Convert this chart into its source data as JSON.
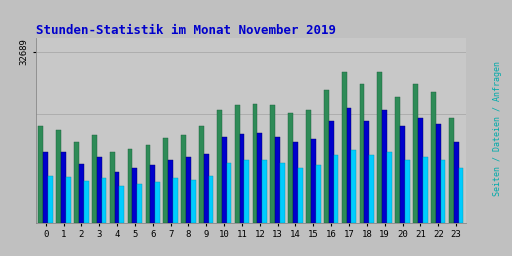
{
  "title": "Stunden-Statistik im Monat November 2019",
  "ylabel": "Seiten / Dateien / Anfragen",
  "ytick_label": "32689",
  "hours": [
    0,
    1,
    2,
    3,
    4,
    5,
    6,
    7,
    8,
    9,
    10,
    11,
    12,
    13,
    14,
    15,
    16,
    17,
    18,
    19,
    20,
    21,
    22,
    23
  ],
  "seiten": [
    18500,
    17800,
    15500,
    16800,
    13500,
    14200,
    14800,
    16200,
    16800,
    18500,
    21500,
    22500,
    22800,
    22500,
    21000,
    21500,
    25500,
    28800,
    26500,
    28800,
    24000,
    26500,
    25000,
    20000
  ],
  "dateien": [
    13500,
    13500,
    11200,
    12500,
    9800,
    10500,
    11000,
    12000,
    12500,
    13200,
    16500,
    17000,
    17200,
    16500,
    15500,
    16000,
    19500,
    22000,
    19500,
    21500,
    18500,
    20000,
    19000,
    15500
  ],
  "anfragen": [
    9000,
    8800,
    8000,
    8500,
    7000,
    7500,
    7800,
    8500,
    8200,
    9000,
    11500,
    12000,
    12000,
    11500,
    10500,
    11000,
    13000,
    14000,
    13000,
    13500,
    12000,
    12500,
    12000,
    10500
  ],
  "color_seiten": "#2e8b57",
  "color_dateien": "#0000cc",
  "color_anfragen": "#00ccff",
  "bg_color": "#c0c0c0",
  "plot_bg_color": "#c8c8c8",
  "title_color": "#0000cc",
  "ylabel_color": "#00aaaa",
  "ymax": 32689,
  "bar_width": 0.27,
  "grid_color": "#b0b0b0"
}
